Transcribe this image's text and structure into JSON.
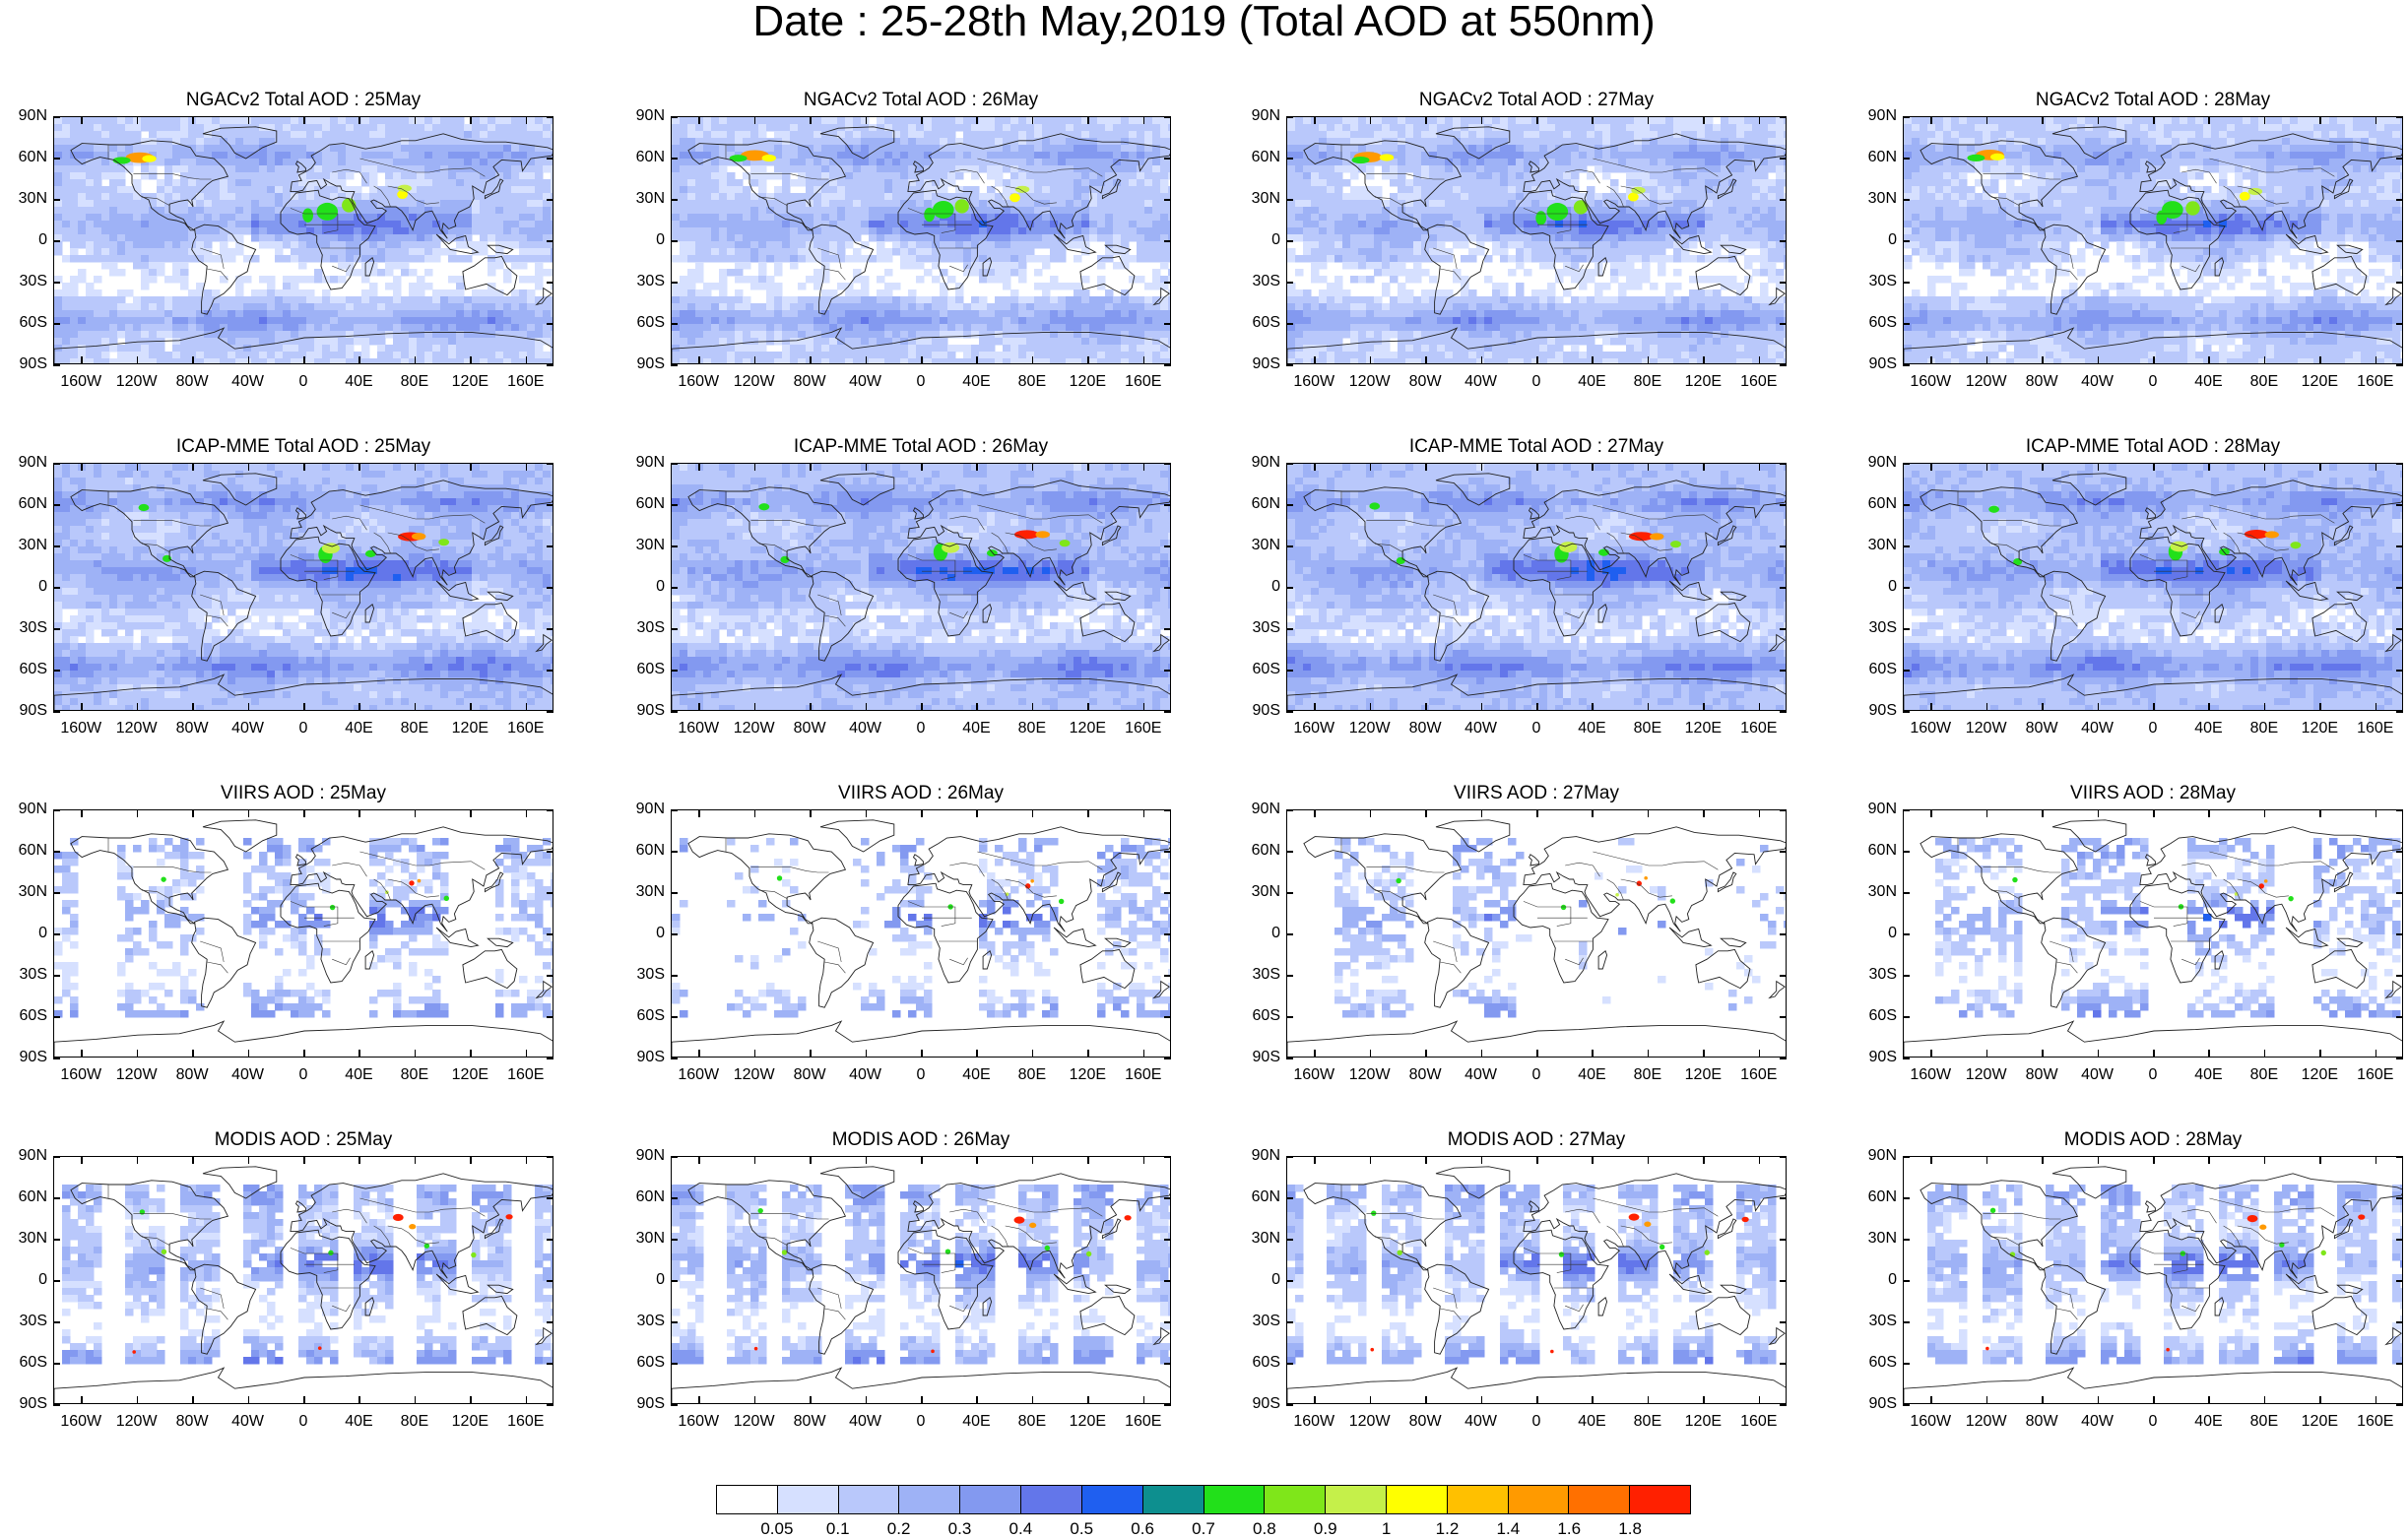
{
  "title": "Date : 25-28th May,2019 (Total AOD at 550nm)",
  "rows": [
    {
      "model": "NGACv2",
      "label_prefix": "NGACv2 Total AOD",
      "style": "ngac"
    },
    {
      "model": "ICAP-MME",
      "label_prefix": "ICAP-MME Total AOD",
      "style": "icap"
    },
    {
      "model": "VIIRS",
      "label_prefix": "VIIRS AOD",
      "style": "viirs"
    },
    {
      "model": "MODIS",
      "label_prefix": "MODIS AOD",
      "style": "modis"
    }
  ],
  "dates": [
    "25May",
    "26May",
    "27May",
    "28May"
  ],
  "panels": [
    {
      "title": "NGACv2 Total AOD : 25May"
    },
    {
      "title": "NGACv2 Total AOD : 26May"
    },
    {
      "title": "NGACv2 Total AOD : 27May"
    },
    {
      "title": "NGACv2 Total AOD : 28May"
    },
    {
      "title": "ICAP-MME Total AOD : 25May"
    },
    {
      "title": "ICAP-MME Total AOD : 26May"
    },
    {
      "title": "ICAP-MME Total AOD : 27May"
    },
    {
      "title": "ICAP-MME Total AOD : 28May"
    },
    {
      "title": "VIIRS AOD : 25May"
    },
    {
      "title": "VIIRS AOD : 26May"
    },
    {
      "title": "VIIRS AOD : 27May"
    },
    {
      "title": "VIIRS AOD : 28May"
    },
    {
      "title": "MODIS AOD : 25May"
    },
    {
      "title": "MODIS AOD : 26May"
    },
    {
      "title": "MODIS AOD : 27May"
    },
    {
      "title": "MODIS AOD : 28May"
    }
  ],
  "axes": {
    "lat_labels": [
      "90N",
      "60N",
      "30N",
      "0",
      "30S",
      "60S",
      "90S"
    ],
    "lat_values": [
      90,
      60,
      30,
      0,
      -30,
      -60,
      -90
    ],
    "lon_labels": [
      "160W",
      "120W",
      "80W",
      "40W",
      "0",
      "40E",
      "80E",
      "120E",
      "160E"
    ],
    "lon_values": [
      -160,
      -120,
      -80,
      -40,
      0,
      40,
      80,
      120,
      160
    ],
    "lon_range": [
      -180,
      180
    ],
    "lat_range": [
      -90,
      90
    ]
  },
  "colorbar": {
    "labels": [
      "0.05",
      "0.1",
      "0.2",
      "0.3",
      "0.4",
      "0.5",
      "0.6",
      "0.7",
      "0.8",
      "0.9",
      "1",
      "1.2",
      "1.4",
      "1.6",
      "1.8"
    ],
    "colors": [
      "#ffffff",
      "#d6e0ff",
      "#b9c8fb",
      "#9eb2f6",
      "#8399f0",
      "#6376ea",
      "#1f5ff0",
      "#0d8f8f",
      "#22e01a",
      "#7fe61a",
      "#c5f04a",
      "#ffff00",
      "#ffc000",
      "#ff9a00",
      "#ff7000",
      "#ff2000"
    ]
  }
}
